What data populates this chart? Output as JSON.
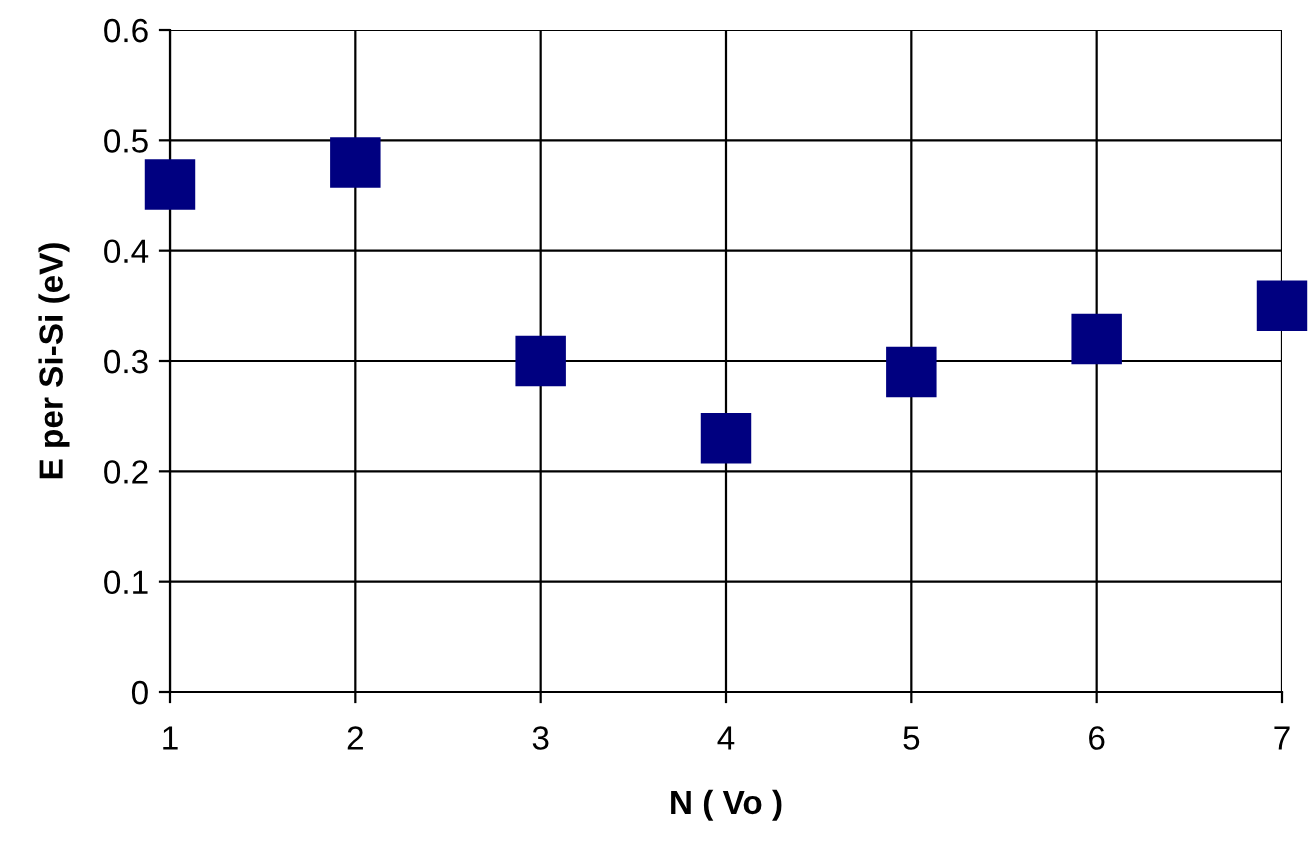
{
  "chart_data": {
    "type": "scatter",
    "xlabel": "N ( Vo )",
    "ylabel": "E per Si-Si (eV)",
    "x": [
      1,
      2,
      3,
      4,
      5,
      6,
      7
    ],
    "series": [
      {
        "color": "#000080",
        "values": [
          0.46,
          0.48,
          0.3,
          0.23,
          0.29,
          0.32,
          0.35
        ]
      }
    ],
    "marker": "square",
    "xlim": [
      1,
      7
    ],
    "xticks": [
      1,
      2,
      3,
      4,
      5,
      6,
      7
    ],
    "ylim": [
      0,
      0.6
    ],
    "yticks": [
      0,
      0.1,
      0.2,
      0.3,
      0.4,
      0.5,
      0.6
    ],
    "grid": true
  }
}
